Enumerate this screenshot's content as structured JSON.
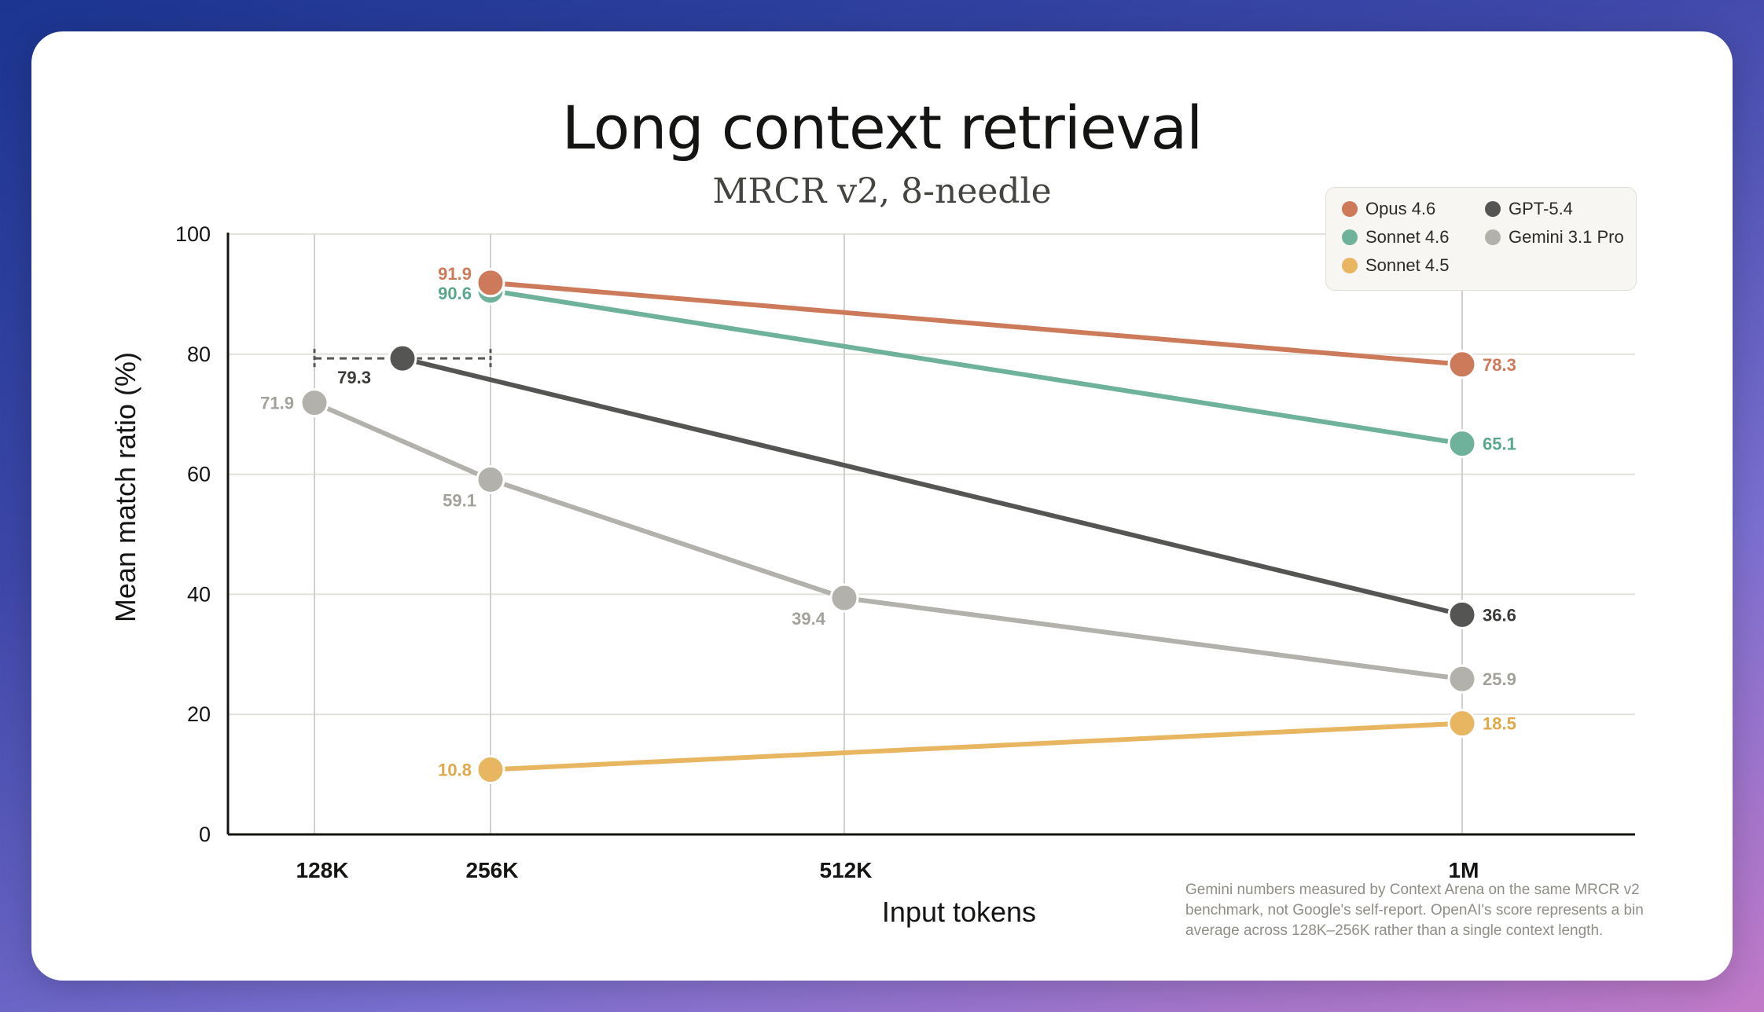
{
  "chart_data": {
    "type": "line",
    "title": "Long context retrieval",
    "subtitle": "MRCR v2, 8-needle",
    "xlabel": "Input tokens",
    "ylabel": "Mean match ratio (%)",
    "ylim": [
      0,
      100
    ],
    "yticks": [
      "0",
      "20",
      "40",
      "60",
      "80",
      "100"
    ],
    "categories": [
      "128K",
      "256K",
      "512K",
      "1M"
    ],
    "grid": "on",
    "legend": "top-right",
    "series": [
      {
        "name": "Opus 4.6",
        "color": "#cc7a5a",
        "points": [
          {
            "x": "256K",
            "y": 91.9
          },
          {
            "x": "1M",
            "y": 78.3
          }
        ],
        "labels": [
          "91.9",
          "78.3"
        ]
      },
      {
        "name": "Sonnet 4.6",
        "color": "#6fb29b",
        "points": [
          {
            "x": "256K",
            "y": 90.6
          },
          {
            "x": "1M",
            "y": 65.1
          }
        ],
        "labels": [
          "90.6",
          "65.1"
        ]
      },
      {
        "name": "Sonnet 4.5",
        "color": "#e8b560",
        "points": [
          {
            "x": "256K",
            "y": 10.8
          },
          {
            "x": "1M",
            "y": 18.5
          }
        ],
        "labels": [
          "10.8",
          "18.5"
        ]
      },
      {
        "name": "GPT-5.4",
        "color": "#555553",
        "points": [
          {
            "x": "128K–256K",
            "y": 79.3
          },
          {
            "x": "1M",
            "y": 36.6
          }
        ],
        "labels": [
          "79.3",
          "36.6"
        ],
        "note": "bin average across 128K–256K"
      },
      {
        "name": "Gemini 3.1 Pro",
        "color": "#b3b1ab",
        "points": [
          {
            "x": "128K",
            "y": 71.9
          },
          {
            "x": "256K",
            "y": 59.1
          },
          {
            "x": "512K",
            "y": 39.4
          },
          {
            "x": "1M",
            "y": 25.9
          }
        ],
        "labels": [
          "71.9",
          "59.1",
          "39.4",
          "25.9"
        ]
      }
    ],
    "footnote": "Gemini numbers measured by Context Arena on the same MRCR v2 benchmark, not Google's self-report. OpenAI's score represents a bin average across 128K–256K rather than a single context length."
  },
  "legend": {
    "items": [
      {
        "label": "Opus 4.6",
        "color": "#cc7a5a"
      },
      {
        "label": "GPT-5.4",
        "color": "#555553"
      },
      {
        "label": "Sonnet 4.6",
        "color": "#6fb29b"
      },
      {
        "label": "Gemini 3.1 Pro",
        "color": "#b3b1ab"
      },
      {
        "label": "Sonnet 4.5",
        "color": "#e8b560"
      }
    ]
  }
}
